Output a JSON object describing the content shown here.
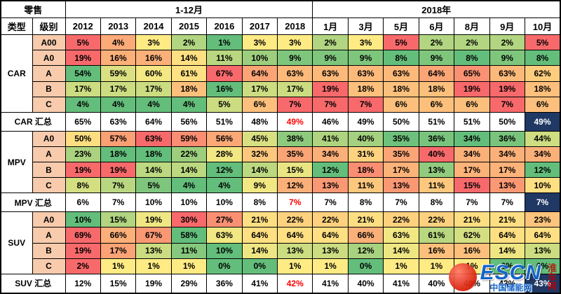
{
  "chart_data": {
    "type": "heatmap",
    "title": "零售",
    "corner": {
      "type": "类型",
      "level": "级别"
    },
    "col_groups": [
      {
        "label": "1-12月",
        "span": 7
      },
      {
        "label": "2018年",
        "span": 7
      }
    ],
    "columns": [
      "2012",
      "2013",
      "2014",
      "2015",
      "2016",
      "2017",
      "2018",
      "1月",
      "3月",
      "5月",
      "6月",
      "8月",
      "9月",
      "10月"
    ],
    "unit": "%",
    "row_groups": [
      {
        "type": "CAR",
        "levels": [
          {
            "level": "A00",
            "values": [
              5,
              4,
              3,
              2,
              1,
              3,
              3,
              2,
              3,
              5,
              2,
              2,
              2,
              5
            ]
          },
          {
            "level": "A0",
            "values": [
              19,
              16,
              16,
              14,
              11,
              10,
              9,
              9,
              9,
              8,
              9,
              8,
              9,
              8
            ]
          },
          {
            "level": "A",
            "values": [
              54,
              59,
              60,
              61,
              67,
              64,
              63,
              63,
              63,
              63,
              64,
              65,
              63,
              62
            ]
          },
          {
            "level": "B",
            "values": [
              17,
              17,
              17,
              18,
              16,
              17,
              17,
              19,
              18,
              18,
              18,
              19,
              19,
              18
            ]
          },
          {
            "level": "C",
            "values": [
              4,
              4,
              4,
              4,
              5,
              6,
              7,
              7,
              7,
              6,
              6,
              6,
              7,
              6
            ]
          }
        ],
        "summary": {
          "label": "CAR 汇总",
          "values": [
            65,
            63,
            64,
            56,
            51,
            48,
            49,
            46,
            49,
            50,
            51,
            51,
            50,
            49
          ]
        }
      },
      {
        "type": "MPV",
        "levels": [
          {
            "level": "A0",
            "values": [
              50,
              57,
              63,
              59,
              56,
              45,
              38,
              41,
              40,
              35,
              36,
              34,
              36,
              44
            ]
          },
          {
            "level": "A",
            "values": [
              23,
              18,
              18,
              22,
              28,
              32,
              35,
              34,
              31,
              35,
              40,
              34,
              34,
              34
            ]
          },
          {
            "level": "B",
            "values": [
              19,
              19,
              14,
              14,
              12,
              14,
              15,
              12,
              18,
              17,
              13,
              17,
              17,
              12
            ]
          },
          {
            "level": "C",
            "values": [
              8,
              7,
              5,
              4,
              4,
              9,
              12,
              13,
              11,
              13,
              11,
              15,
              13,
              10
            ]
          }
        ],
        "summary": {
          "label": "MPV 汇总",
          "values": [
            6,
            7,
            10,
            10,
            10,
            8,
            7,
            7,
            8,
            7,
            8,
            7,
            7,
            7
          ]
        }
      },
      {
        "type": "SUV",
        "levels": [
          {
            "level": "A0",
            "values": [
              10,
              15,
              19,
              30,
              27,
              21,
              22,
              22,
              21,
              22,
              22,
              21,
              21,
              23
            ]
          },
          {
            "level": "A",
            "values": [
              69,
              66,
              67,
              58,
              63,
              64,
              64,
              64,
              66,
              63,
              61,
              62,
              64,
              64
            ]
          },
          {
            "level": "B",
            "values": [
              19,
              17,
              13,
              11,
              10,
              14,
              13,
              13,
              12,
              14,
              16,
              16,
              14,
              13
            ]
          },
          {
            "level": "C",
            "values": [
              2,
              1,
              1,
              1,
              0,
              0,
              1,
              1,
              0,
              1,
              1,
              1,
              0,
              0
            ]
          }
        ],
        "summary": {
          "label": "SUV 汇总",
          "values": [
            12,
            15,
            19,
            29,
            36,
            41,
            42,
            41,
            40,
            41,
            40,
            40,
            43,
            43
          ]
        }
      }
    ],
    "legend_position": "none",
    "grid": true
  },
  "colors": {
    "heat_min_green": "#63BE7B",
    "heat_mid_yellow": "#FFEB84",
    "heat_max_red": "#F8696B",
    "level_cell_bg": "#F7CBAC",
    "summary_highlight_bg": "#1F3864",
    "summary_2018_text": "#FF0000"
  },
  "watermark": {
    "brand": "ESCN",
    "subtitle": "中国储能网",
    "side_text": "淮车网"
  }
}
